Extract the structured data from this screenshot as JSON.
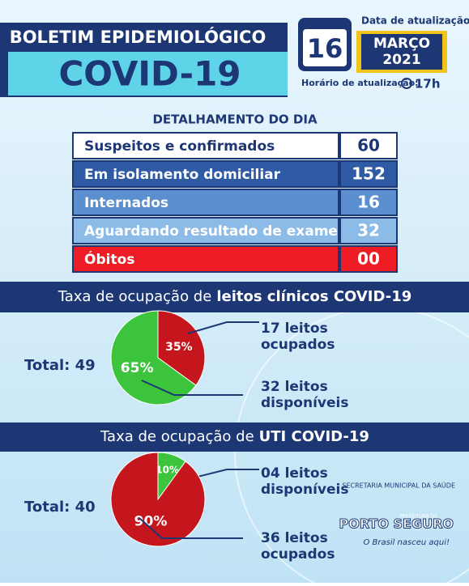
{
  "header": {
    "title": "BOLETIM EPIDEMIOLÓGICO",
    "subtitle": "COVID-19",
    "date_label": "Data de atualização:",
    "day": "16",
    "month": "MARÇO",
    "year": "2021",
    "time_label": "Horário de atualização:",
    "time": "17h"
  },
  "table": {
    "title": "DETALHAMENTO DO DIA",
    "rows": [
      [
        "Suspeitos e confirmados",
        "60"
      ],
      [
        "Em isolamento domiciliar",
        "152"
      ],
      [
        "Internados",
        "16"
      ],
      [
        "Aguardando resultado de exame",
        "32"
      ],
      [
        "Óbitos",
        "00"
      ]
    ]
  },
  "chart_data": [
    {
      "type": "pie",
      "title": "Taxa de ocupação de",
      "title_bold": "leitos clínicos COVID-19",
      "total": "Total: 49",
      "categories": [
        "17 leitos ocupados",
        "32 leitos disponíveis"
      ],
      "values": [
        35,
        65
      ],
      "value_labels": [
        "35%",
        "65%"
      ],
      "colors": [
        "#c4161c",
        "#3cc43c"
      ]
    },
    {
      "type": "pie",
      "title": "Taxa de ocupação de",
      "title_bold": "UTI COVID-19",
      "total": "Total: 40",
      "categories": [
        "04 leitos disponíveis",
        "36 leitos ocupados"
      ],
      "values": [
        10,
        90
      ],
      "value_labels": [
        "10%",
        "90%"
      ],
      "colors": [
        "#3cc43c",
        "#c4161c"
      ]
    }
  ],
  "logo": {
    "secretaria": "SECRETARIA MUNICIPAL DA SAÚDE",
    "prefeitura": "PREFEITURA DE",
    "name": "PORTO SEGURO",
    "slogan": "O Brasil nasceu aqui!"
  }
}
